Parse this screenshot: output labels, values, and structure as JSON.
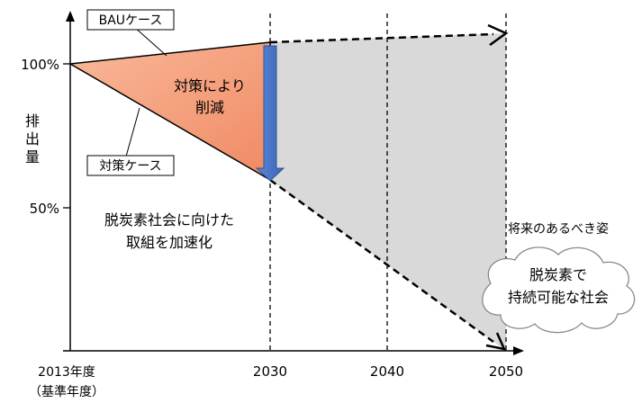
{
  "y_axis": {
    "label_chars": [
      "排",
      "出",
      "量"
    ],
    "ticks": [
      "100%",
      "50%"
    ]
  },
  "x_axis": {
    "ticks": [
      "2013年度",
      "2030",
      "2040",
      "2050"
    ],
    "base_note": "（基準年度）"
  },
  "callouts": {
    "bau": "BAUケース",
    "policy": "対策ケース"
  },
  "reduction": {
    "line1": "対策により",
    "line2": "削減"
  },
  "acceleration": {
    "line1": "脱炭素社会に向けた",
    "line2": "取組を加速化"
  },
  "future": {
    "caption": "将来のあるべき姿",
    "cloud_line1": "脱炭素で",
    "cloud_line2": "持続可能な社会"
  },
  "colors": {
    "reduction_fill": "#f6a27e",
    "future_fill": "#d9d9d9",
    "arrow_blue": "#4472c4"
  }
}
